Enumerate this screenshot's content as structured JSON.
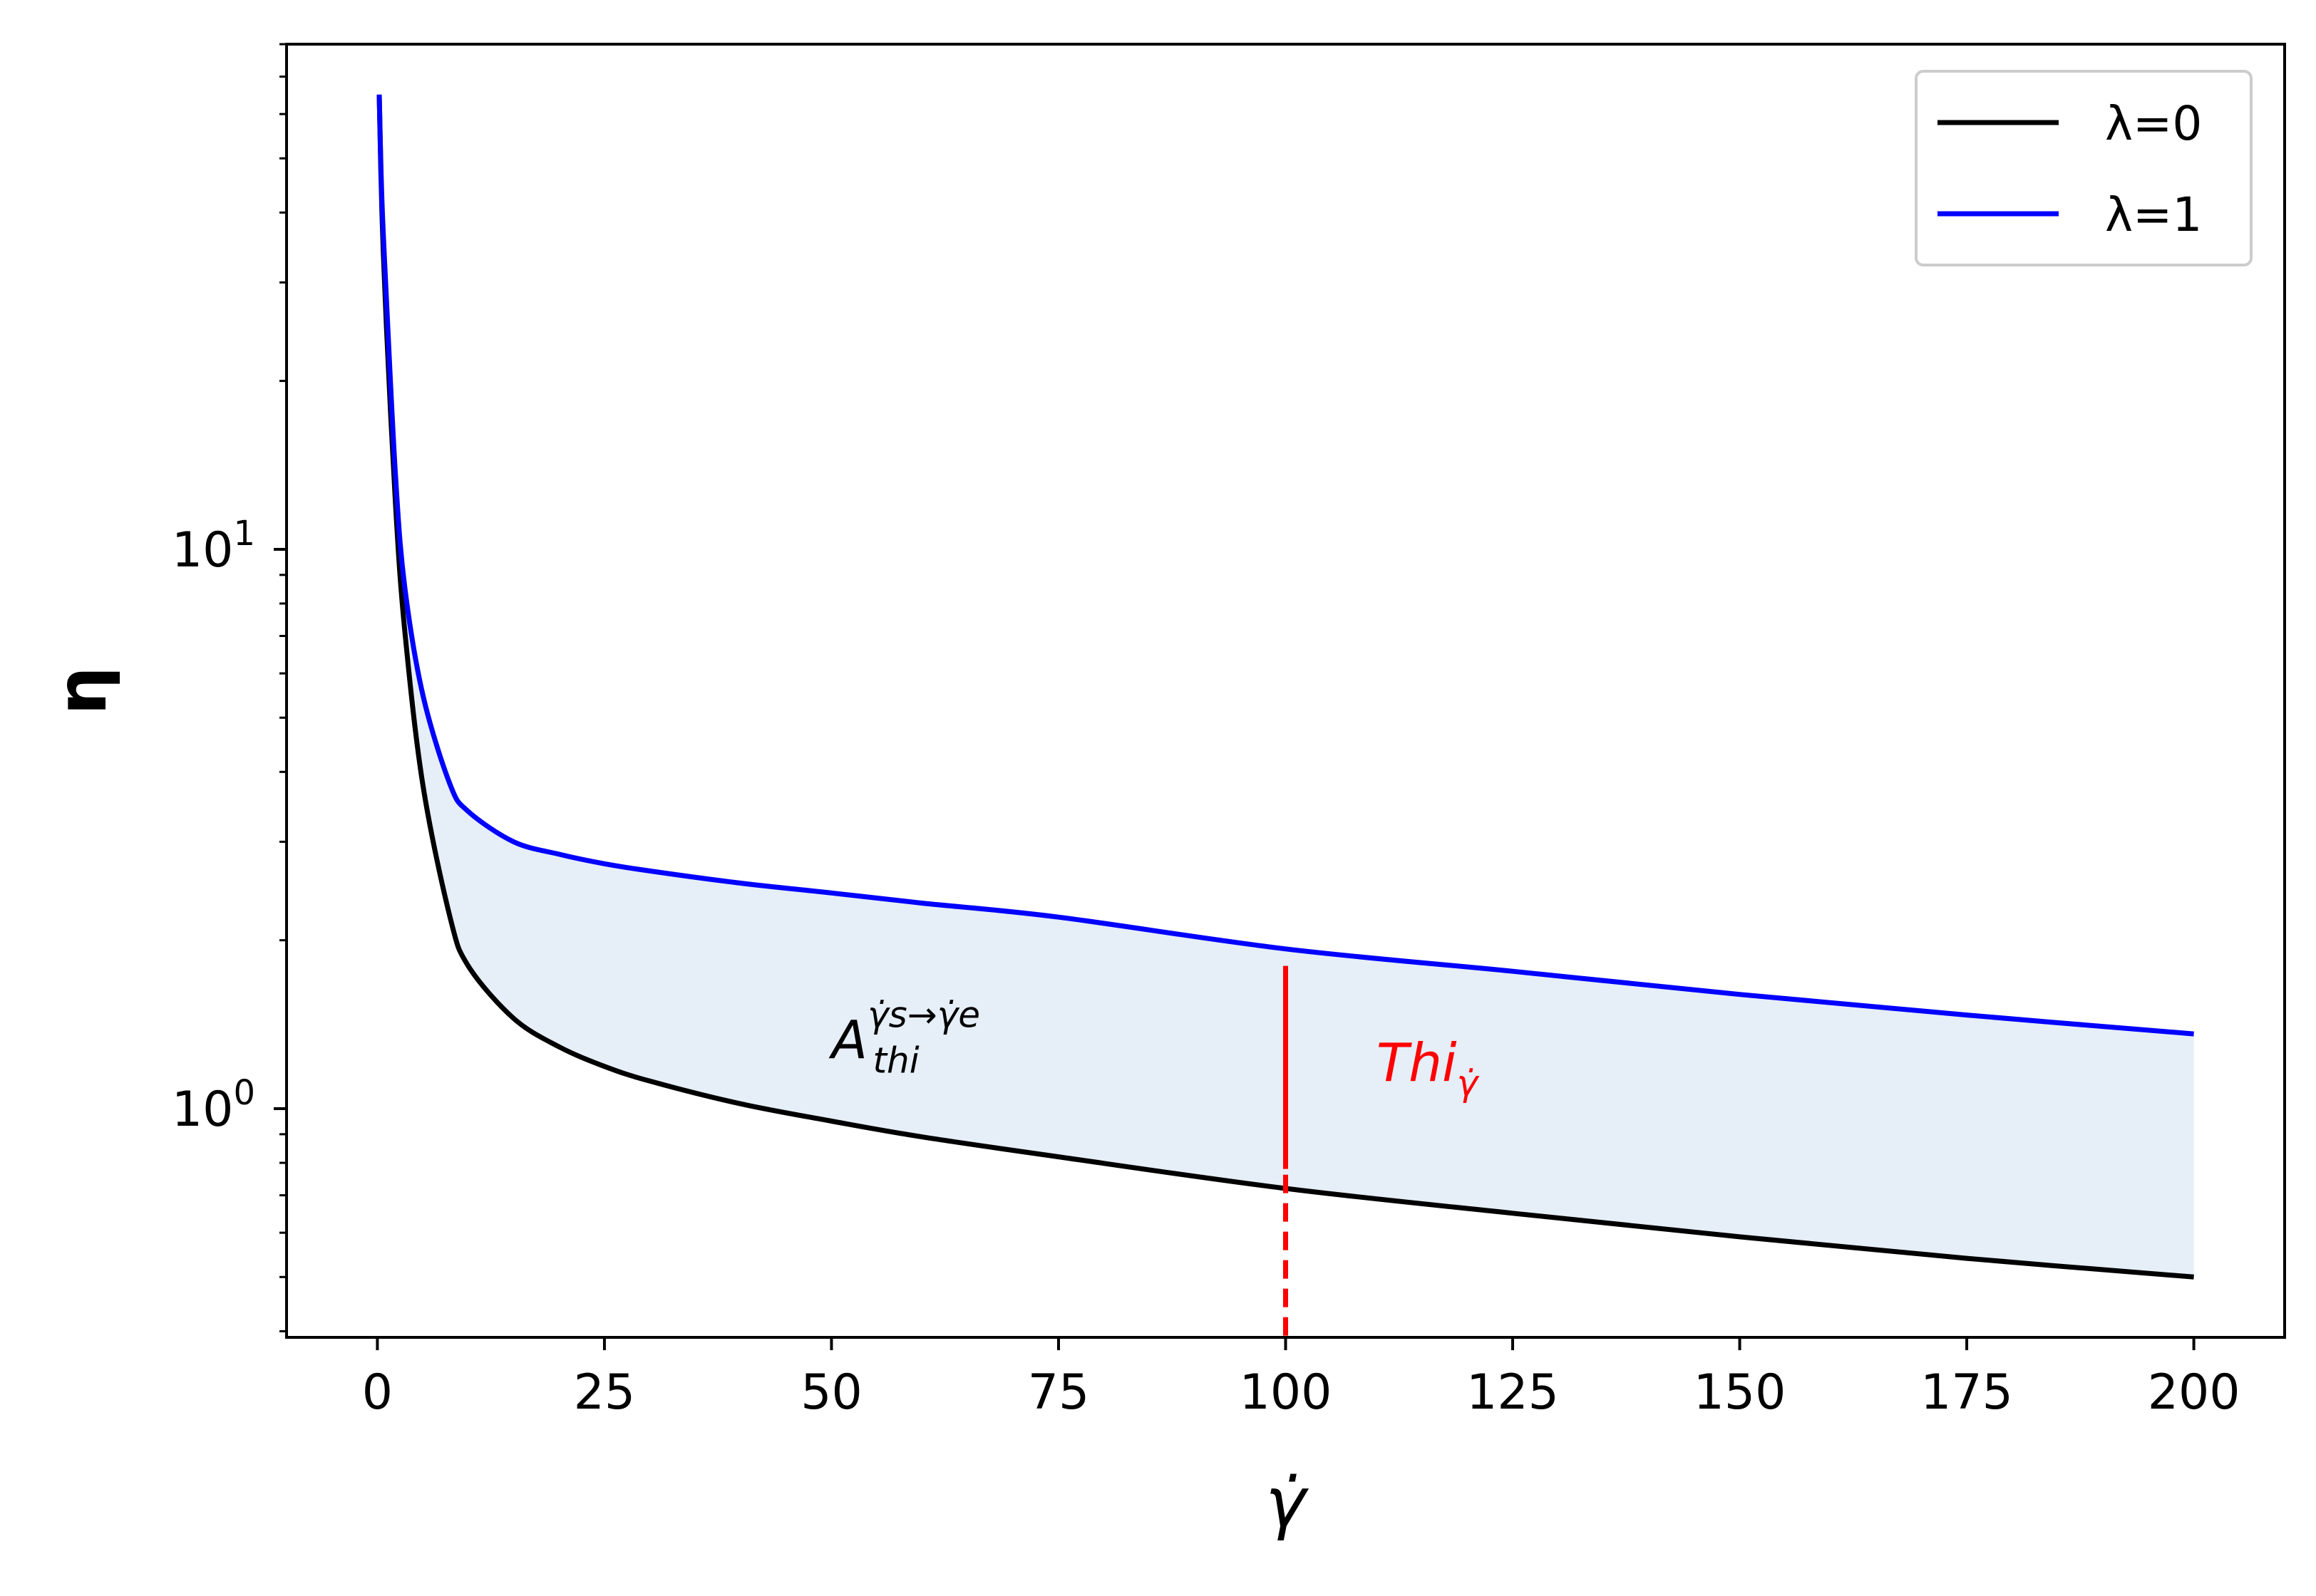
{
  "chart_data": {
    "type": "line",
    "xlabel": "γ̇",
    "ylabel": "η",
    "xlim": [
      -10,
      210
    ],
    "ylim": [
      0.39,
      80
    ],
    "yscale": "log",
    "grid": false,
    "legend_position": "top-right",
    "x_ticks": [
      0,
      25,
      50,
      75,
      100,
      125,
      150,
      175,
      200
    ],
    "x_tick_labels": [
      "0",
      "25",
      "50",
      "75",
      "100",
      "125",
      "150",
      "175",
      "200"
    ],
    "y_ticks": [
      {
        "value": 1,
        "base": "10",
        "exp": "0"
      },
      {
        "value": 10,
        "base": "10",
        "exp": "1"
      }
    ],
    "x": [
      0.2,
      0.5,
      1,
      2,
      3,
      5,
      8,
      10,
      15,
      20,
      25,
      30,
      40,
      50,
      60,
      75,
      100,
      125,
      150,
      175,
      200
    ],
    "series": [
      {
        "name": "λ=0",
        "color": "#000000",
        "values": [
          65,
          40,
          25,
          12,
          7.2,
          3.8,
          2.2,
          1.8,
          1.45,
          1.29,
          1.19,
          1.12,
          1.02,
          0.95,
          0.89,
          0.82,
          0.72,
          0.65,
          0.59,
          0.54,
          0.5
        ]
      },
      {
        "name": "λ=1",
        "color": "#0000ff",
        "values": [
          65,
          42,
          28,
          13.5,
          8.6,
          5.5,
          3.8,
          3.4,
          3.0,
          2.85,
          2.74,
          2.66,
          2.53,
          2.43,
          2.33,
          2.2,
          1.93,
          1.76,
          1.6,
          1.47,
          1.36
        ]
      }
    ],
    "fill_between": {
      "color": "#e6eef7",
      "x_range": [
        2,
        200
      ]
    },
    "annotations": [
      {
        "id": "area",
        "base": "A",
        "sub": "thi",
        "sup": "γ̇s→γ̇e",
        "x": 50,
        "y": 1.23,
        "color": "#000000"
      },
      {
        "id": "thi",
        "base": "Thi",
        "sub": "γ̇",
        "x": 110,
        "y": 1.12,
        "color": "#ff0000"
      }
    ],
    "vline": {
      "x": 100,
      "solid_from": 0.78,
      "solid_to": 1.8,
      "dashed_from": 0.39,
      "dashed_to": 0.78,
      "color": "#ff0000"
    }
  }
}
